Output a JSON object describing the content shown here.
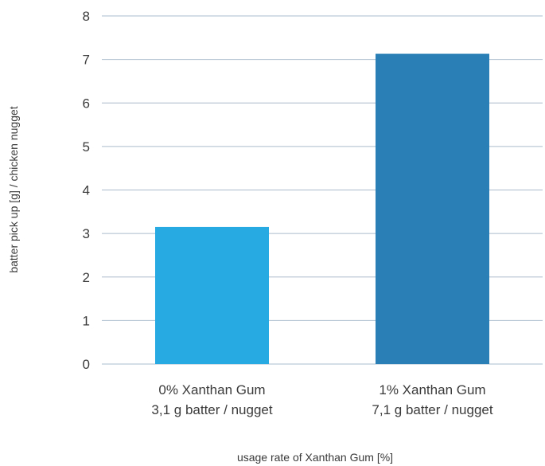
{
  "chart_data": {
    "type": "bar",
    "categories": [
      [
        "0% Xanthan Gum",
        "3,1 g batter / nugget"
      ],
      [
        "1% Xanthan Gum",
        "7,1 g batter / nugget"
      ]
    ],
    "values": [
      3.15,
      7.13
    ],
    "bar_colors": [
      "#27aae1",
      "#2a7fb7"
    ],
    "title": "",
    "xlabel": "usage rate of Xanthan Gum [%]",
    "ylabel": "batter pick up [g] / chicken nugget",
    "ylim": [
      0,
      8
    ],
    "yticks": [
      0,
      1,
      2,
      3,
      4,
      5,
      6,
      7,
      8
    ],
    "grid": true,
    "gridline_color": "#aabccc",
    "legend": "none"
  }
}
